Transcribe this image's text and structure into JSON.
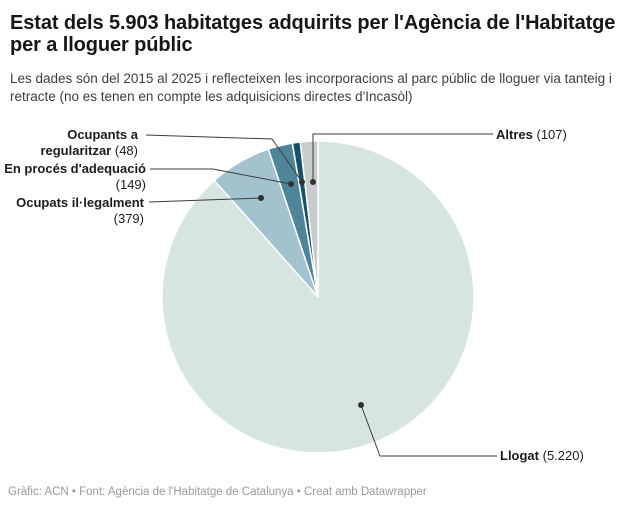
{
  "header": {
    "title": "Estat dels 5.903 habitatges adquirits per l'Agència de l'Habitatge per a lloguer públic",
    "subtitle": "Les dades són del 2015 al 2025 i reflecteixen les incorporacions al parc públic de lloguer via tanteig i retracte (no es tenen en compte les adquisicions directes d'Incasòl)"
  },
  "chart_data": {
    "type": "pie",
    "title": "Estat dels 5.903 habitatges adquirits per l'Agència de l'Habitatge per a lloguer públic",
    "total": 5903,
    "total_label": "5.903",
    "start_angle_deg": 0,
    "direction": "clockwise",
    "legend_position": "callout-labels",
    "slices": [
      {
        "label": "Llogat",
        "value": 5220,
        "value_label": "(5.220)",
        "color": "#d7e5e1"
      },
      {
        "label": "Ocupats il·legalment",
        "value": 379,
        "value_label": "(379)",
        "color": "#a2c2ce"
      },
      {
        "label": "En procés d'adequació",
        "value": 149,
        "value_label": "(149)",
        "color": "#4e8598"
      },
      {
        "label": "Ocupants a regularitzar",
        "value": 48,
        "value_label": "(48)",
        "color": "#17506b"
      },
      {
        "label": "Altres",
        "value": 107,
        "value_label": "(107)",
        "color": "#c8cccc"
      }
    ]
  },
  "footer": {
    "credit": "Gràfic: ACN • Font: Agència de l'Habitatge de Catalunya • Creat amb Datawrapper"
  }
}
